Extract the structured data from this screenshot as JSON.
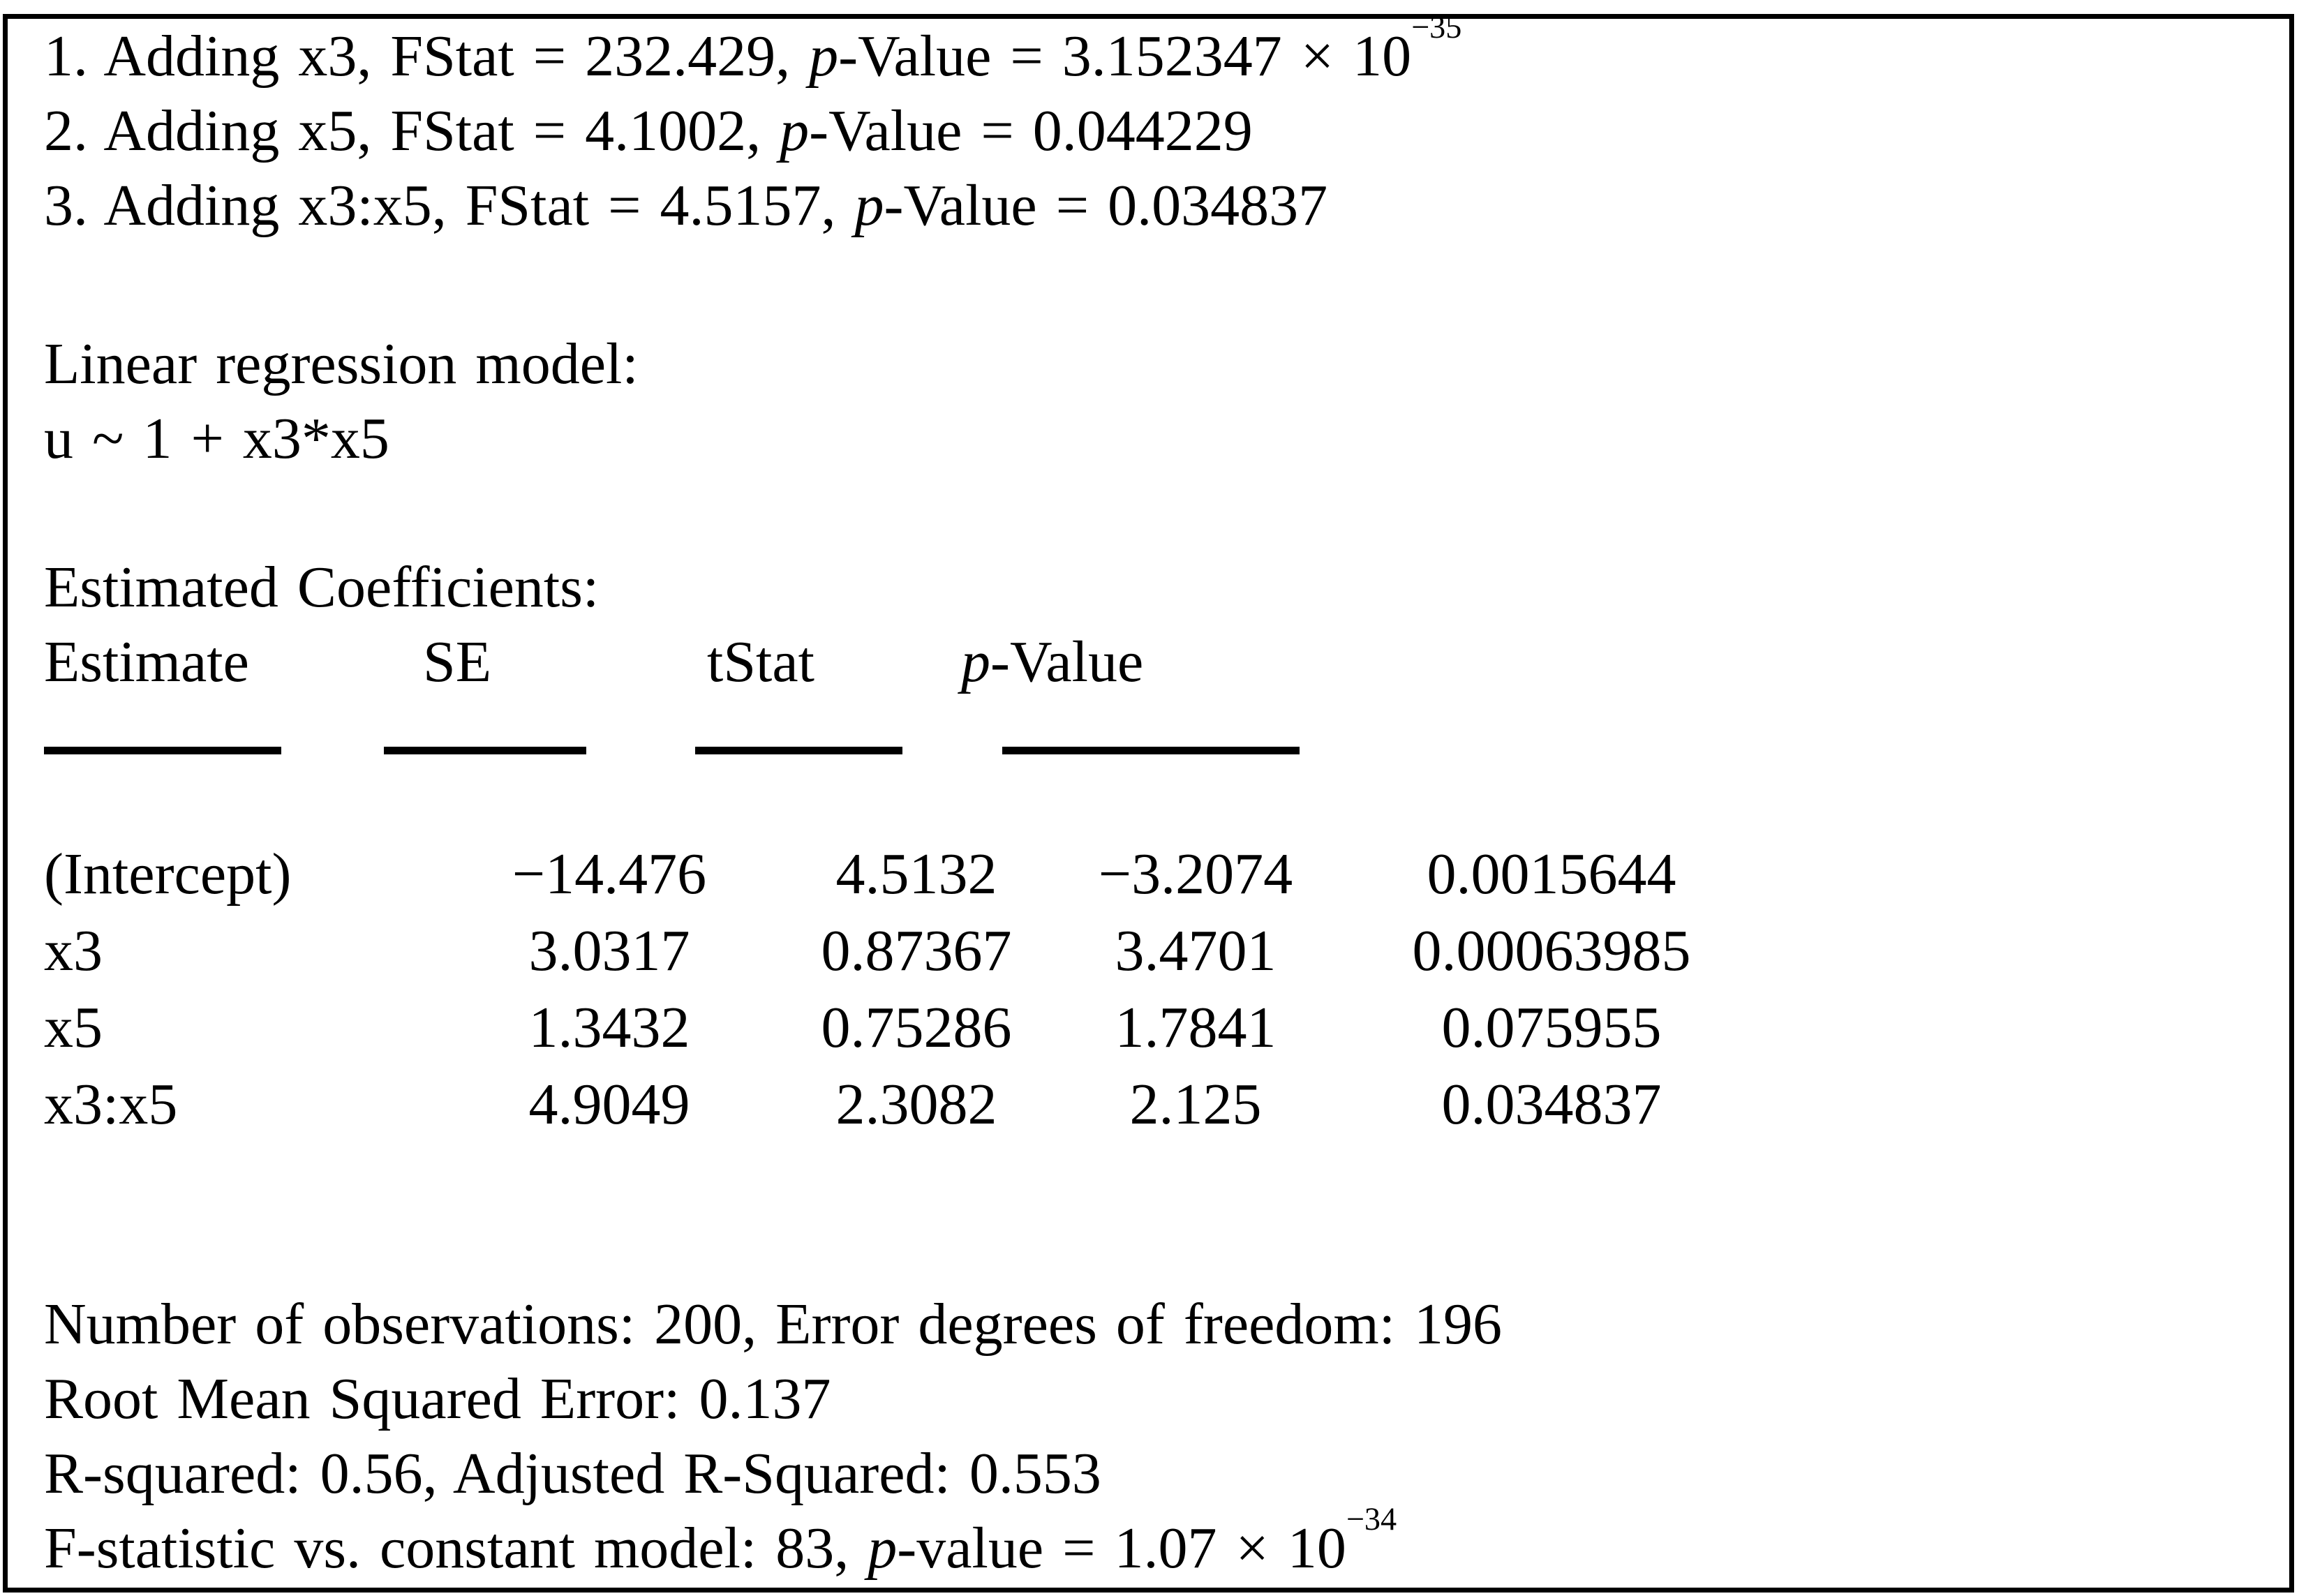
{
  "colors": {
    "text": "#000000",
    "background": "#ffffff",
    "border": "#000000"
  },
  "steps": [
    {
      "prefix": "1. Adding x3, FStat = 232.429, ",
      "p": "p",
      "mid": "-Value = 3.152347 × 10",
      "exp": "−35"
    },
    {
      "prefix": "2. Adding x5, FStat = 4.1002, ",
      "p": "p",
      "mid": "-Value = 0.044229",
      "exp": ""
    },
    {
      "prefix": "3. Adding x3:x5, FStat = 4.5157, ",
      "p": "p",
      "mid": "-Value = 0.034837",
      "exp": ""
    }
  ],
  "model": {
    "title": "Linear regression model:",
    "formula": "u ~ 1 + x3*x5"
  },
  "coefficients": {
    "title": "Estimated Coefficients:",
    "headers": {
      "estimate": "Estimate",
      "se": "SE",
      "tstat": "tStat",
      "p_italic": "p",
      "p_rest": "-Value"
    },
    "rows": [
      {
        "label": "(Intercept)",
        "estimate": "−14.476",
        "se": "4.5132",
        "tstat": "−3.2074",
        "pvalue": "0.0015644"
      },
      {
        "label": "x3",
        "estimate": "3.0317",
        "se": "0.87367",
        "tstat": "3.4701",
        "pvalue": "0.00063985"
      },
      {
        "label": "x5",
        "estimate": "1.3432",
        "se": "0.75286",
        "tstat": "1.7841",
        "pvalue": "0.075955"
      },
      {
        "label": "x3:x5",
        "estimate": "4.9049",
        "se": "2.3082",
        "tstat": "2.125",
        "pvalue": "0.034837"
      }
    ]
  },
  "stats": {
    "observations_line": "Number of observations: 200, Error degrees of freedom: 196",
    "rmse_line": "Root Mean Squared Error: 0.137",
    "rsquared_line": "R-squared: 0.56, Adjusted R-Squared: 0.553",
    "fstat": {
      "prefix": "F-statistic vs. constant model: 83, ",
      "p": "p",
      "mid": "-value = 1.07 × 10",
      "exp": "−34"
    }
  }
}
